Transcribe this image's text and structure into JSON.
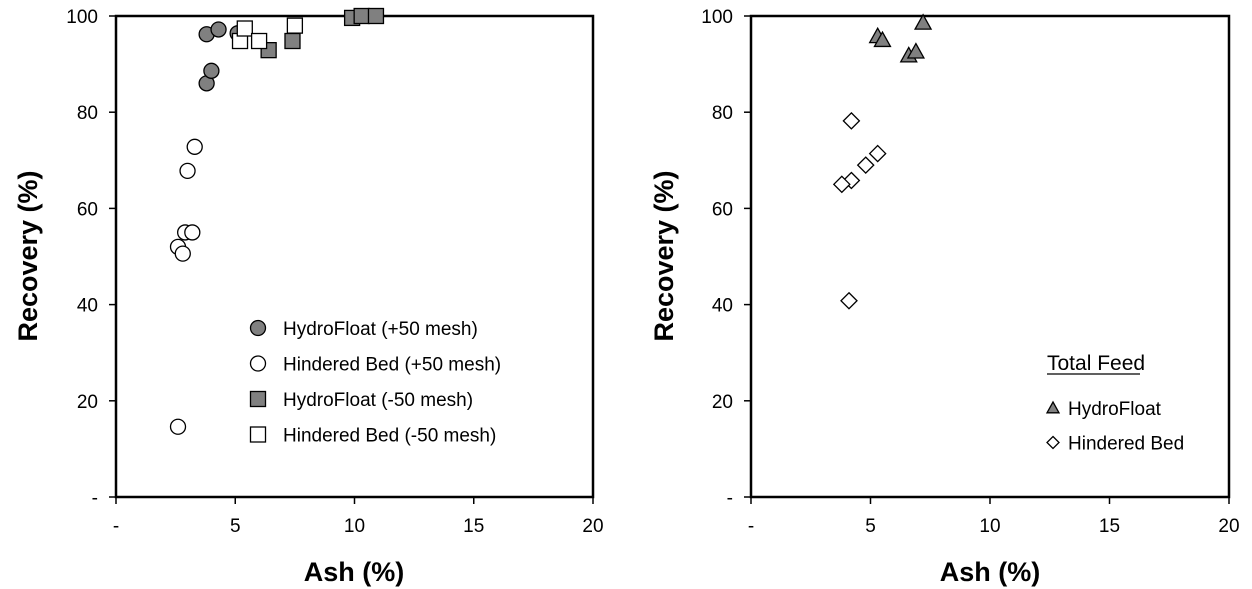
{
  "chart_data": [
    {
      "type": "scatter",
      "xlabel": "Ash (%)",
      "ylabel": "Recovery (%)",
      "xlim": [
        0,
        20
      ],
      "ylim": [
        0,
        100
      ],
      "x_ticks": [
        "-",
        "5",
        "10",
        "15",
        "20"
      ],
      "y_ticks": [
        "-",
        "20",
        "40",
        "60",
        "80",
        "100"
      ],
      "grid": false,
      "legend_position": "bottom-right",
      "legend_title": "",
      "series": [
        {
          "name": "HydroFloat (+50 mesh)",
          "marker": "circle",
          "fill": "#808080",
          "points": [
            [
              3.8,
              96.2
            ],
            [
              4.3,
              97.2
            ],
            [
              5.1,
              96.4
            ],
            [
              3.8,
              86.0
            ],
            [
              4.0,
              88.6
            ]
          ]
        },
        {
          "name": "Hindered Bed (+50 mesh)",
          "marker": "circle",
          "fill": "#ffffff",
          "points": [
            [
              3.3,
              72.8
            ],
            [
              3.0,
              67.8
            ],
            [
              2.9,
              55.0
            ],
            [
              3.2,
              55.0
            ],
            [
              2.6,
              52.0
            ],
            [
              2.8,
              50.6
            ],
            [
              2.6,
              14.6
            ]
          ]
        },
        {
          "name": "HydroFloat (-50 mesh)",
          "marker": "square",
          "fill": "#808080",
          "points": [
            [
              6.4,
              92.9
            ],
            [
              7.4,
              94.8
            ],
            [
              9.9,
              99.6
            ],
            [
              10.3,
              100.0
            ],
            [
              10.9,
              100.0
            ]
          ]
        },
        {
          "name": "Hindered Bed (-50 mesh)",
          "marker": "square",
          "fill": "#ffffff",
          "points": [
            [
              5.2,
              94.8
            ],
            [
              5.4,
              97.4
            ],
            [
              6.0,
              94.8
            ],
            [
              7.5,
              98.0
            ]
          ]
        }
      ]
    },
    {
      "type": "scatter",
      "xlabel": "Ash (%)",
      "ylabel": "Recovery (%)",
      "xlim": [
        0,
        20
      ],
      "ylim": [
        0,
        100
      ],
      "x_ticks": [
        "-",
        "5",
        "10",
        "15",
        "20"
      ],
      "y_ticks": [
        "-",
        "20",
        "40",
        "60",
        "80",
        "100"
      ],
      "grid": false,
      "legend_position": "bottom-right",
      "legend_title": "Total Feed",
      "series": [
        {
          "name": "HydroFloat",
          "marker": "triangle",
          "fill": "#808080",
          "points": [
            [
              5.3,
              95.8
            ],
            [
              5.5,
              95.0
            ],
            [
              6.6,
              91.8
            ],
            [
              6.9,
              92.6
            ],
            [
              7.2,
              98.6
            ]
          ]
        },
        {
          "name": "Hindered Bed",
          "marker": "diamond",
          "fill": "#ffffff",
          "points": [
            [
              4.2,
              78.2
            ],
            [
              5.3,
              71.4
            ],
            [
              4.8,
              69.0
            ],
            [
              4.2,
              65.8
            ],
            [
              3.8,
              65.0
            ],
            [
              4.1,
              40.8
            ]
          ]
        }
      ]
    }
  ]
}
